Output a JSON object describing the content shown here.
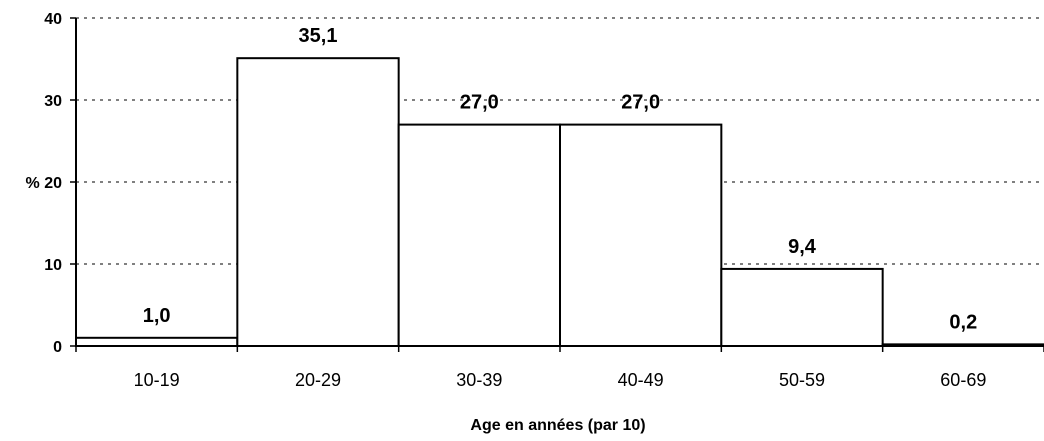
{
  "chart_data": {
    "type": "bar",
    "categories": [
      "10-19",
      "20-29",
      "30-39",
      "40-49",
      "50-59",
      "60-69"
    ],
    "values": [
      1.0,
      35.1,
      27.0,
      27.0,
      9.4,
      0.2
    ],
    "data_labels": [
      "1,0",
      "35,1",
      "27,0",
      "27,0",
      "9,4",
      "0,2"
    ],
    "title": "",
    "xlabel": "Age en années (par 10)",
    "ylabel": "%",
    "ylim": [
      0,
      40
    ],
    "yticks": [
      0,
      10,
      20,
      30,
      40
    ],
    "ytick_labels": [
      "0",
      "10",
      "20",
      "30",
      "40"
    ],
    "grid": true,
    "bar_gap": false,
    "colors": {
      "bar_fill": "#ffffff",
      "bar_stroke": "#000000",
      "grid": "#000000"
    }
  }
}
